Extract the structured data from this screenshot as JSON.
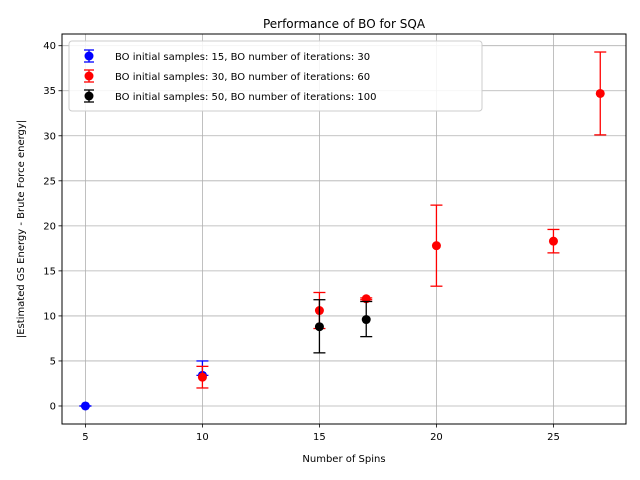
{
  "chart_data": {
    "type": "scatter",
    "title": "Performance of BO for SQA",
    "xlabel": "Number of Spins",
    "ylabel": "|Estimated GS Energy - Brute Force energy|",
    "xlim": [
      4.0,
      28.1
    ],
    "ylim": [
      -2.0,
      41.3
    ],
    "xticks": [
      5,
      10,
      15,
      20,
      25
    ],
    "yticks": [
      0,
      5,
      10,
      15,
      20,
      25,
      30,
      35,
      40
    ],
    "grid": true,
    "legend_position": "top-left",
    "series": [
      {
        "name": "BO initial samples: 15, BO number of iterations: 30",
        "color": "#0000ff",
        "points": [
          {
            "x": 5,
            "y": 0.0,
            "err_low": 0.0,
            "err_high": 0.0
          },
          {
            "x": 10,
            "y": 3.4,
            "err_low": 3.4,
            "err_high": 5.0
          }
        ]
      },
      {
        "name": "BO initial samples: 30, BO number of iterations: 60",
        "color": "#ff0000",
        "points": [
          {
            "x": 10,
            "y": 3.2,
            "err_low": 2.0,
            "err_high": 4.4
          },
          {
            "x": 15,
            "y": 10.6,
            "err_low": 8.6,
            "err_high": 12.6
          },
          {
            "x": 17,
            "y": 11.9,
            "err_low": 11.8,
            "err_high": 12.0
          },
          {
            "x": 20,
            "y": 17.8,
            "err_low": 13.3,
            "err_high": 22.3
          },
          {
            "x": 25,
            "y": 18.3,
            "err_low": 17.0,
            "err_high": 19.6
          },
          {
            "x": 27,
            "y": 34.7,
            "err_low": 30.1,
            "err_high": 39.3
          }
        ]
      },
      {
        "name": "BO initial samples: 50, BO number of iterations: 100",
        "color": "#000000",
        "points": [
          {
            "x": 15,
            "y": 8.8,
            "err_low": 5.9,
            "err_high": 11.8
          },
          {
            "x": 17,
            "y": 9.6,
            "err_low": 7.7,
            "err_high": 11.6
          }
        ]
      }
    ]
  }
}
